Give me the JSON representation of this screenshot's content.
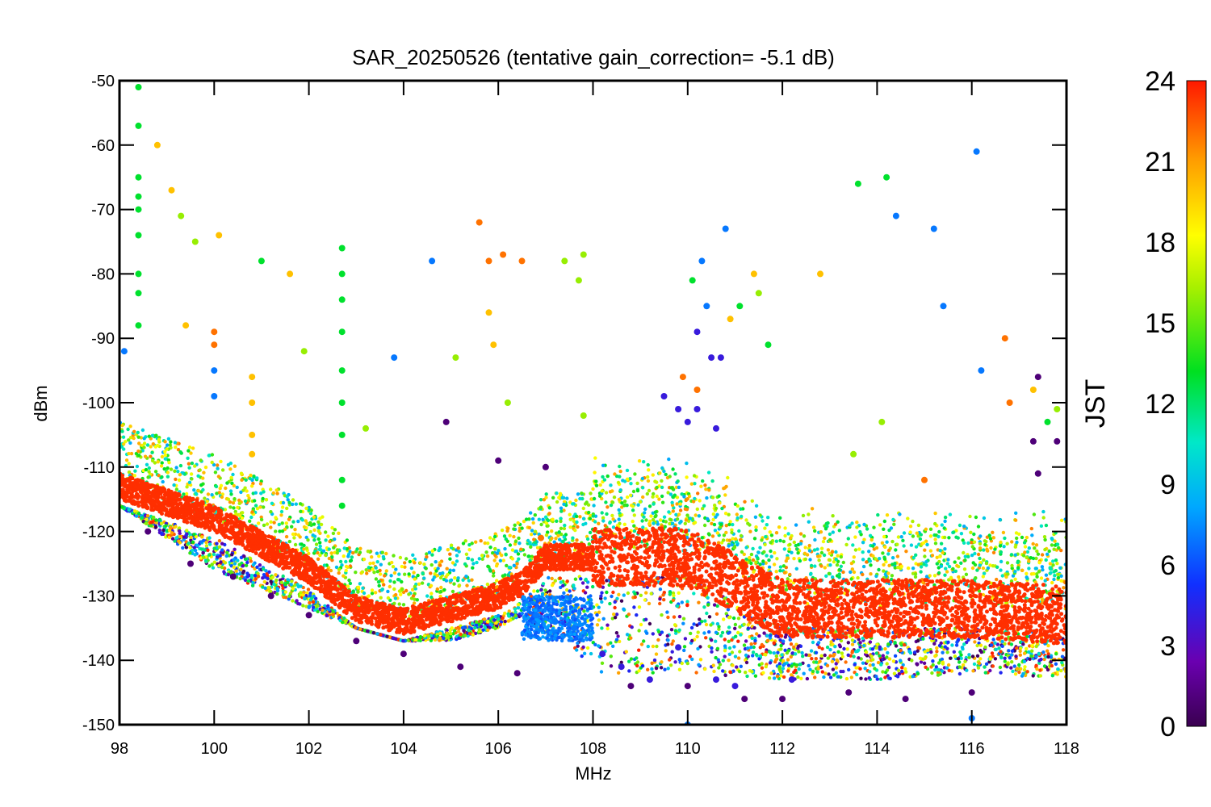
{
  "chart_data": {
    "type": "scatter",
    "title": "SAR_20250526 (tentative gain_correction= -5.1 dB)",
    "xlabel": "MHz",
    "ylabel": "dBm",
    "xlim": [
      98,
      118
    ],
    "ylim": [
      -150,
      -50
    ],
    "x_ticks": [
      "98",
      "100",
      "102",
      "104",
      "106",
      "108",
      "110",
      "112",
      "114",
      "116",
      "118"
    ],
    "y_ticks": [
      "-50",
      "-60",
      "-70",
      "-80",
      "-90",
      "-100",
      "-110",
      "-120",
      "-130",
      "-140",
      "-150"
    ],
    "grid": false,
    "colorbar": {
      "label": "JST",
      "range": [
        0,
        24
      ],
      "ticks": [
        "0",
        "3",
        "6",
        "9",
        "12",
        "15",
        "18",
        "21",
        "24"
      ],
      "colormap": "rainbow (purple → blue → cyan → green → yellow → orange → red)"
    },
    "noise_floor": {
      "description": "dense band of points per hour",
      "x": [
        98,
        100,
        102,
        103,
        104,
        105,
        106,
        106.5,
        107,
        107.5,
        108,
        110,
        112,
        114,
        116,
        118
      ],
      "y_red": [
        -113,
        -118,
        -126,
        -132,
        -134,
        -132,
        -130,
        -128,
        -124,
        -124,
        -124,
        -124,
        -132,
        -132,
        -132,
        -133
      ],
      "y_lower_envelope": [
        -116,
        -126,
        -132,
        -135,
        -137,
        -137,
        -135,
        -133,
        -136,
        -137,
        -142,
        -142,
        -143,
        -143,
        -142,
        -143
      ]
    },
    "series": [
      {
        "colorbar_value": 7,
        "points": [
          [
            98.1,
            -92
          ],
          [
            100,
            -95
          ],
          [
            100,
            -99
          ],
          [
            103.8,
            -93
          ],
          [
            104.6,
            -78
          ],
          [
            106.8,
            -133
          ],
          [
            107.2,
            -134
          ],
          [
            107.6,
            -135
          ],
          [
            110.3,
            -78
          ],
          [
            110.4,
            -85
          ],
          [
            110.8,
            -73
          ],
          [
            115.2,
            -73
          ],
          [
            116.1,
            -61
          ],
          [
            116.2,
            -95
          ],
          [
            115.4,
            -85
          ],
          [
            114.4,
            -71
          ],
          [
            110,
            -150
          ],
          [
            116,
            -149
          ]
        ]
      },
      {
        "colorbar_value": 4,
        "points": [
          [
            109.5,
            -99
          ],
          [
            109.8,
            -101
          ],
          [
            110,
            -103
          ],
          [
            110.2,
            -101
          ],
          [
            110.5,
            -93
          ],
          [
            110.7,
            -93
          ],
          [
            110.2,
            -89
          ],
          [
            110.6,
            -104
          ],
          [
            108.2,
            -139
          ],
          [
            108.6,
            -141
          ],
          [
            109.2,
            -143
          ],
          [
            109.8,
            -138
          ],
          [
            110.6,
            -143
          ],
          [
            111,
            -144
          ],
          [
            112.2,
            -143
          ]
        ]
      },
      {
        "colorbar_value": 13,
        "points": [
          [
            98.4,
            -51
          ],
          [
            98.4,
            -57
          ],
          [
            98.4,
            -65
          ],
          [
            98.4,
            -68
          ],
          [
            98.4,
            -70
          ],
          [
            98.4,
            -74
          ],
          [
            98.4,
            -80
          ],
          [
            98.4,
            -83
          ],
          [
            98.4,
            -88
          ],
          [
            102.7,
            -76
          ],
          [
            102.7,
            -80
          ],
          [
            102.7,
            -84
          ],
          [
            102.7,
            -89
          ],
          [
            102.7,
            -95
          ],
          [
            102.7,
            -100
          ],
          [
            102.7,
            -105
          ],
          [
            102.7,
            -112
          ],
          [
            102.7,
            -116
          ],
          [
            110.1,
            -81
          ],
          [
            111.7,
            -91
          ],
          [
            111.1,
            -85
          ],
          [
            114.2,
            -65
          ],
          [
            113.6,
            -66
          ],
          [
            117.6,
            -103
          ],
          [
            101,
            -78
          ]
        ]
      },
      {
        "colorbar_value": 20,
        "points": [
          [
            98.8,
            -60
          ],
          [
            99.1,
            -67
          ],
          [
            100.1,
            -74
          ],
          [
            101.6,
            -80
          ],
          [
            100.8,
            -96
          ],
          [
            100.8,
            -100
          ],
          [
            100.8,
            -105
          ],
          [
            100.8,
            -108
          ],
          [
            105.8,
            -86
          ],
          [
            110.9,
            -87
          ],
          [
            111.4,
            -80
          ],
          [
            112.8,
            -80
          ],
          [
            117.3,
            -98
          ],
          [
            99.4,
            -88
          ],
          [
            105.9,
            -91
          ]
        ]
      },
      {
        "colorbar_value": 22,
        "points": [
          [
            105.6,
            -72
          ],
          [
            105.8,
            -78
          ],
          [
            106.1,
            -77
          ],
          [
            106.5,
            -78
          ],
          [
            100,
            -89
          ],
          [
            100,
            -91
          ],
          [
            116.7,
            -90
          ],
          [
            116.8,
            -100
          ],
          [
            115,
            -112
          ],
          [
            106.9,
            -121
          ],
          [
            109.9,
            -96
          ],
          [
            110.2,
            -98
          ]
        ]
      },
      {
        "colorbar_value": 16,
        "points": [
          [
            99.3,
            -71
          ],
          [
            99.6,
            -75
          ],
          [
            107.4,
            -78
          ],
          [
            107.8,
            -77
          ],
          [
            107.7,
            -81
          ],
          [
            111.5,
            -83
          ],
          [
            105.1,
            -93
          ],
          [
            101.9,
            -92
          ],
          [
            103.2,
            -104
          ],
          [
            106.2,
            -100
          ],
          [
            107.8,
            -102
          ],
          [
            113.5,
            -108
          ],
          [
            114.1,
            -103
          ],
          [
            117.8,
            -101
          ]
        ]
      },
      {
        "colorbar_value": 1,
        "points": [
          [
            98.6,
            -120
          ],
          [
            99.5,
            -125
          ],
          [
            100.4,
            -127
          ],
          [
            101.2,
            -130
          ],
          [
            102,
            -133
          ],
          [
            103,
            -137
          ],
          [
            104,
            -139
          ],
          [
            105.2,
            -141
          ],
          [
            106.4,
            -142
          ],
          [
            106,
            -109
          ],
          [
            107,
            -110
          ],
          [
            108.8,
            -144
          ],
          [
            110,
            -144
          ],
          [
            111.2,
            -146
          ],
          [
            112,
            -146
          ],
          [
            113.4,
            -145
          ],
          [
            114.6,
            -146
          ],
          [
            116,
            -145
          ],
          [
            117.4,
            -96
          ],
          [
            117.3,
            -106
          ],
          [
            117.8,
            -106
          ],
          [
            115.7,
            -151
          ],
          [
            117.4,
            -111
          ],
          [
            104.9,
            -103
          ]
        ]
      }
    ]
  }
}
